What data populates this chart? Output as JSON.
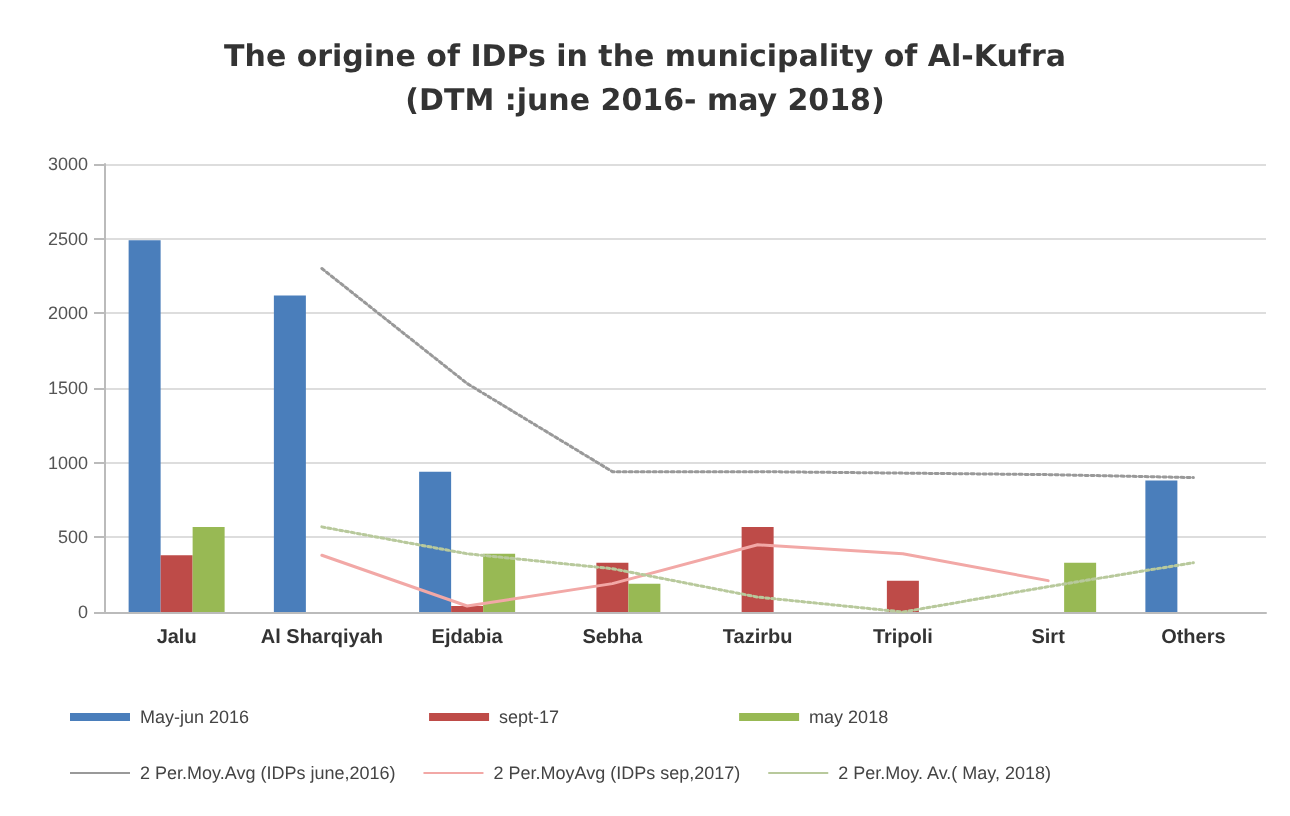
{
  "chart_data": {
    "type": "bar",
    "title": "The origine of IDPs in the municipality of Al-Kufra\n(DTM :june 2016- may 2018)",
    "categories": [
      "Jalu",
      "Al Sharqiyah",
      "Ejdabia",
      "Sebha",
      "Tazirbu",
      "Tripoli",
      "Sirt",
      "Others"
    ],
    "series": [
      {
        "name": "May-jun 2016",
        "color": "#4a7ebb",
        "values": [
          2490,
          2120,
          940,
          null,
          null,
          null,
          null,
          880
        ]
      },
      {
        "name": "sept-17",
        "color": "#be4b48",
        "values": [
          380,
          null,
          40,
          330,
          570,
          210,
          null,
          null
        ]
      },
      {
        "name": "may 2018",
        "color": "#98b954",
        "values": [
          570,
          null,
          390,
          190,
          null,
          null,
          330,
          null
        ]
      },
      {
        "name": "2 Per.Moy.Avg (IDPs june,2016)",
        "type": "line",
        "color": "#999999",
        "line_style": "dotted",
        "values": [
          null,
          2300,
          1530,
          940,
          940,
          930,
          920,
          900
        ]
      },
      {
        "name": "2 Per.MoyAvg (IDPs sep,2017)",
        "type": "line",
        "color": "#f2a8a6",
        "line_style": "solid",
        "values": [
          null,
          380,
          40,
          190,
          450,
          390,
          210,
          null
        ]
      },
      {
        "name": "2 Per.Moy. Av.( May, 2018)",
        "type": "line",
        "color": "#b8c99c",
        "line_style": "dotted",
        "values": [
          null,
          570,
          390,
          290,
          100,
          0,
          170,
          330
        ]
      }
    ],
    "ylim": [
      0,
      3000
    ],
    "yticks": [
      0,
      500,
      1000,
      1500,
      2000,
      2500,
      3000
    ],
    "grid": "y",
    "legend": "bottom",
    "marker": "none"
  }
}
